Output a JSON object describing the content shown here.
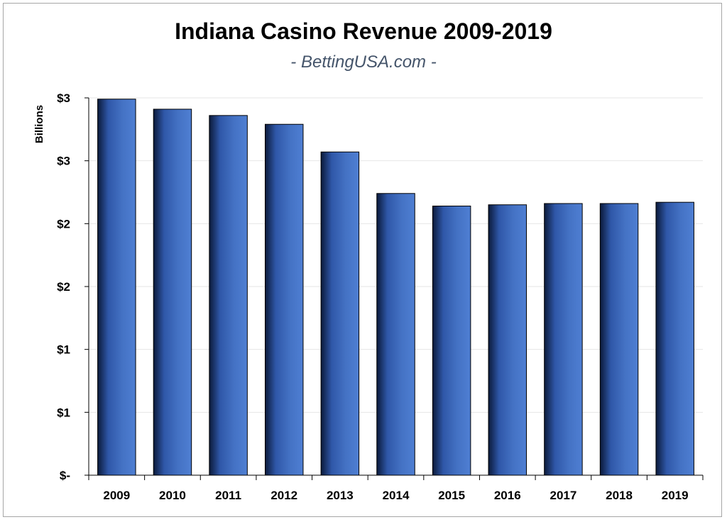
{
  "chart_data": {
    "type": "bar",
    "title": "Indiana Casino Revenue 2009-2019",
    "subtitle": "- BettingUSA.com -",
    "ylabel": "Billions",
    "xlabel": "",
    "categories": [
      "2009",
      "2010",
      "2011",
      "2012",
      "2013",
      "2014",
      "2015",
      "2016",
      "2017",
      "2018",
      "2019"
    ],
    "values": [
      2.99,
      2.91,
      2.86,
      2.79,
      2.57,
      2.24,
      2.14,
      2.15,
      2.16,
      2.16,
      2.17
    ],
    "ylim": [
      0,
      3
    ],
    "y_ticks": [
      0,
      0.5,
      1,
      1.5,
      2,
      2.5,
      3
    ],
    "y_tick_labels": [
      "$-",
      "$1",
      "$1",
      "$2",
      "$2",
      "$3",
      "$3"
    ],
    "grid": true,
    "legend": "none",
    "bar_color": "#4472c4",
    "bar_shadow_color": "#0b1a3a"
  }
}
